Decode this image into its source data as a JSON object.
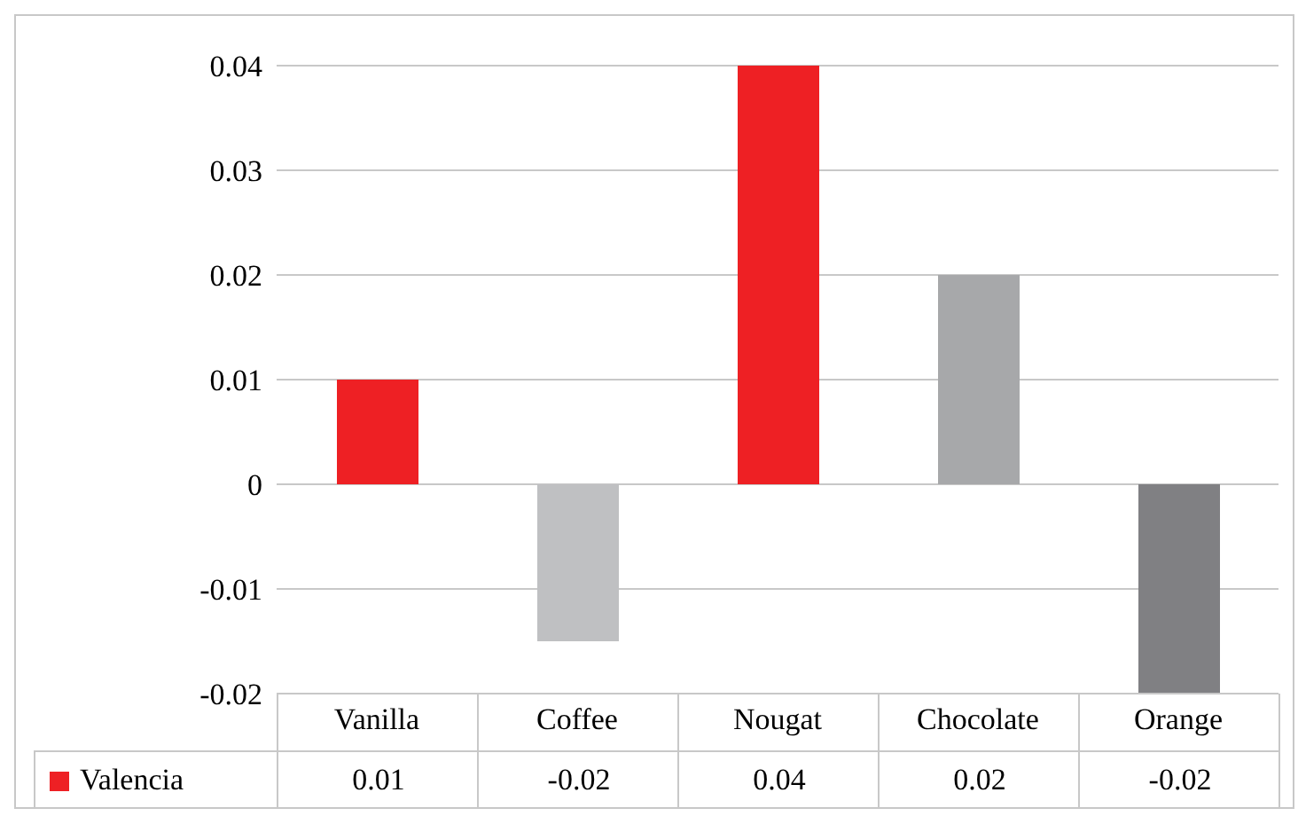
{
  "chart_data": {
    "type": "bar",
    "categories": [
      "Vanilla",
      "Coffee",
      "Nougat",
      "Chocolate",
      "Orange"
    ],
    "series": [
      {
        "name": "Valencia",
        "colors": [
          "#ee2024",
          "#bfc0c2",
          "#ee2024",
          "#a7a8aa",
          "#808083"
        ],
        "values": [
          0.01,
          -0.015,
          0.04,
          0.02,
          -0.02
        ],
        "value_labels": [
          "0.01",
          "-0.02",
          "0.04",
          "0.02",
          "-0.02"
        ]
      }
    ],
    "ylim": [
      -0.02,
      0.04
    ],
    "yticks": [
      -0.02,
      -0.01,
      0,
      0.01,
      0.02,
      0.03,
      0.04
    ],
    "grid": "y",
    "legend": "bottom left"
  }
}
